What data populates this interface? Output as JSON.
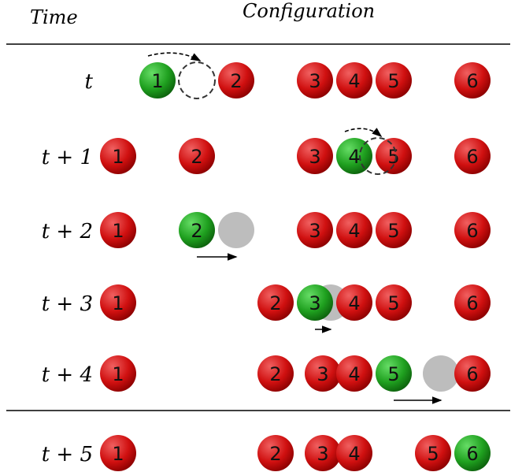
{
  "header": {
    "time": "Time",
    "configuration": "Configuration"
  },
  "colors": {
    "red": "#d10f0f",
    "red_light": "#f05a5a",
    "green": "#1e9a1e",
    "green_light": "#57d457",
    "gray": "#bdbdbd",
    "line": "#000000"
  },
  "rows": [
    {
      "time": "t",
      "particles": [
        {
          "id": "1",
          "site": 1,
          "state": "active"
        },
        {
          "id": "2",
          "site": 3,
          "state": "inactive"
        },
        {
          "id": "3",
          "site": 5,
          "state": "inactive"
        },
        {
          "id": "4",
          "site": 6,
          "state": "inactive"
        },
        {
          "id": "5",
          "site": 7,
          "state": "inactive"
        },
        {
          "id": "6",
          "site": 9,
          "state": "inactive"
        }
      ],
      "ghosts": [],
      "targets": [
        2
      ],
      "arrows": [
        {
          "from": 1,
          "to": 2,
          "style": "dashed-arc"
        }
      ]
    },
    {
      "time": "t + 1",
      "particles": [
        {
          "id": "1",
          "site": 0,
          "state": "inactive"
        },
        {
          "id": "2",
          "site": 2,
          "state": "inactive"
        },
        {
          "id": "3",
          "site": 5,
          "state": "inactive"
        },
        {
          "id": "4",
          "site": 6,
          "state": "active"
        },
        {
          "id": "5",
          "site": 7,
          "state": "inactive"
        },
        {
          "id": "6",
          "site": 9,
          "state": "inactive"
        }
      ],
      "ghosts": [],
      "targets": [
        6.6
      ],
      "arrows": [
        {
          "from": 6,
          "to": 6.6,
          "style": "dashed-arc"
        }
      ]
    },
    {
      "time": "t + 2",
      "particles": [
        {
          "id": "1",
          "site": 0,
          "state": "inactive"
        },
        {
          "id": "2",
          "site": 2,
          "state": "active"
        },
        {
          "id": "3",
          "site": 5,
          "state": "inactive"
        },
        {
          "id": "4",
          "site": 6,
          "state": "inactive"
        },
        {
          "id": "5",
          "site": 7,
          "state": "inactive"
        },
        {
          "id": "6",
          "site": 9,
          "state": "inactive"
        }
      ],
      "ghosts": [
        {
          "site": 3
        }
      ],
      "targets": [],
      "arrows": [
        {
          "from": 2,
          "to": 3,
          "style": "solid"
        }
      ]
    },
    {
      "time": "t + 3",
      "particles": [
        {
          "id": "1",
          "site": 0,
          "state": "inactive"
        },
        {
          "id": "2",
          "site": 4,
          "state": "inactive"
        },
        {
          "id": "3",
          "site": 5,
          "state": "active"
        },
        {
          "id": "4",
          "site": 6,
          "state": "inactive"
        },
        {
          "id": "5",
          "site": 7,
          "state": "inactive"
        },
        {
          "id": "6",
          "site": 9,
          "state": "inactive"
        }
      ],
      "ghosts": [
        {
          "site": 5.4
        }
      ],
      "targets": [],
      "arrows": [
        {
          "from": 5,
          "to": 5.4,
          "style": "solid"
        }
      ]
    },
    {
      "time": "t + 4",
      "particles": [
        {
          "id": "1",
          "site": 0,
          "state": "inactive"
        },
        {
          "id": "2",
          "site": 4,
          "state": "inactive"
        },
        {
          "id": "3",
          "site": 5.2,
          "state": "inactive"
        },
        {
          "id": "4",
          "site": 6,
          "state": "inactive"
        },
        {
          "id": "5",
          "site": 7,
          "state": "active"
        },
        {
          "id": "6",
          "site": 9,
          "state": "inactive"
        }
      ],
      "ghosts": [
        {
          "site": 8.2
        }
      ],
      "targets": [],
      "arrows": [
        {
          "from": 7,
          "to": 8.2,
          "style": "solid"
        }
      ]
    },
    {
      "time": "t + 5",
      "particles": [
        {
          "id": "1",
          "site": 0,
          "state": "inactive"
        },
        {
          "id": "2",
          "site": 4,
          "state": "inactive"
        },
        {
          "id": "3",
          "site": 5.2,
          "state": "inactive"
        },
        {
          "id": "4",
          "site": 6,
          "state": "inactive"
        },
        {
          "id": "5",
          "site": 8,
          "state": "inactive"
        },
        {
          "id": "6",
          "site": 9,
          "state": "active"
        }
      ],
      "ghosts": [],
      "targets": [],
      "arrows": []
    }
  ]
}
